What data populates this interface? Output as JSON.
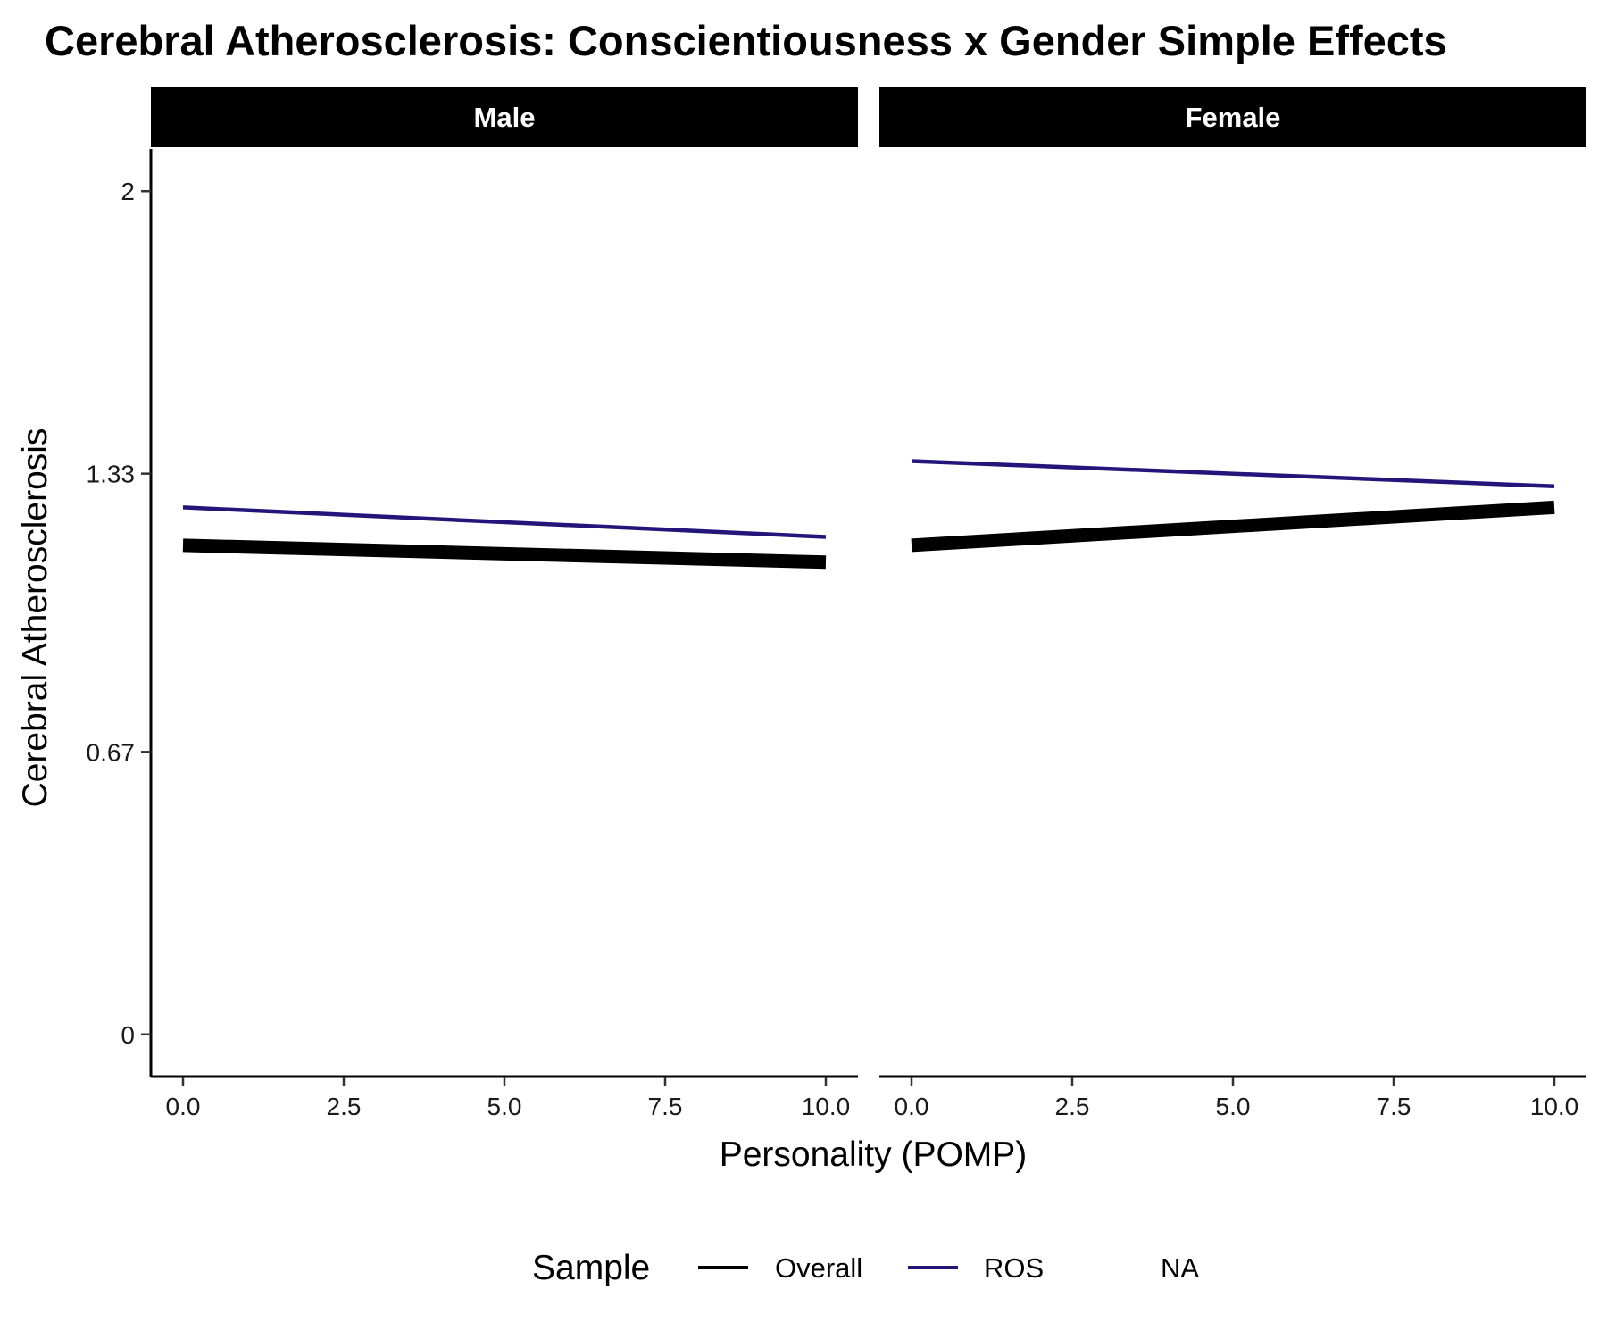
{
  "chart_data": {
    "type": "line",
    "title": "Cerebral Atherosclerosis: Conscientiousness x Gender Simple Effects",
    "xlabel": "Personality (POMP)",
    "ylabel": "Cerebral Atherosclerosis",
    "x_ticks": [
      "0.0",
      "2.5",
      "5.0",
      "7.5",
      "10.0"
    ],
    "x_tick_values": [
      0,
      2.5,
      5,
      7.5,
      10
    ],
    "y_ticks": [
      "0",
      "0.67",
      "1.33",
      "2"
    ],
    "y_tick_values": [
      0,
      0.67,
      1.33,
      2
    ],
    "xlim": [
      -0.5,
      10.5
    ],
    "ylim": [
      -0.1,
      2.1
    ],
    "grid": false,
    "legend_position": "bottom",
    "legend": {
      "title": "Sample",
      "entries": [
        {
          "label": "Overall",
          "color": "#000000"
        },
        {
          "label": "ROS",
          "color": "#23157a"
        },
        {
          "label": "NA",
          "color": null
        }
      ]
    },
    "facets": [
      {
        "label": "Male",
        "series": [
          {
            "name": "Overall",
            "color": "#000000",
            "thick": true,
            "x": [
              0,
              10
            ],
            "y": [
              1.16,
              1.12
            ]
          },
          {
            "name": "ROS",
            "color": "#23157a",
            "thick": false,
            "x": [
              0,
              10
            ],
            "y": [
              1.25,
              1.18
            ]
          }
        ]
      },
      {
        "label": "Female",
        "series": [
          {
            "name": "Overall",
            "color": "#000000",
            "thick": true,
            "x": [
              0,
              10
            ],
            "y": [
              1.16,
              1.25
            ]
          },
          {
            "name": "ROS",
            "color": "#23157a",
            "thick": false,
            "x": [
              0,
              10
            ],
            "y": [
              1.36,
              1.3
            ]
          }
        ]
      }
    ]
  }
}
